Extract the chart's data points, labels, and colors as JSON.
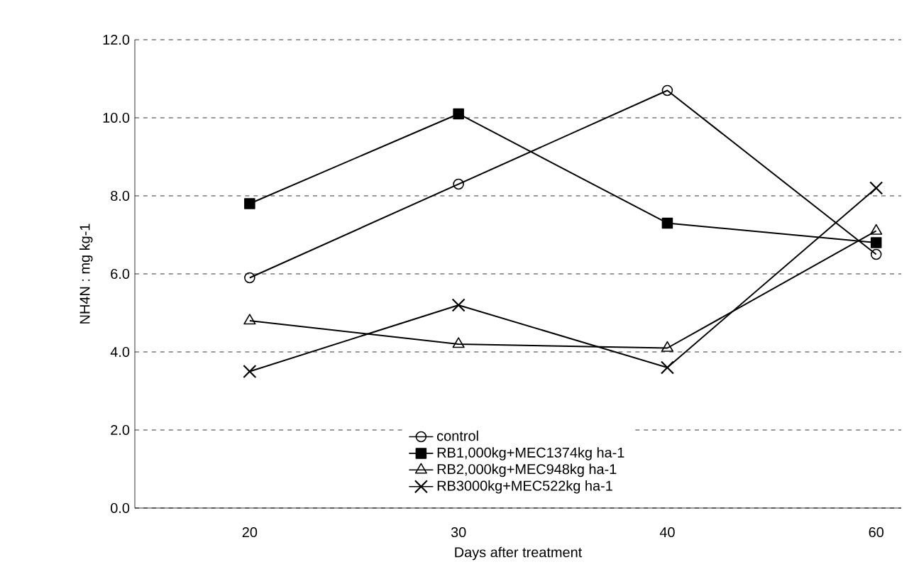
{
  "chart_data": {
    "type": "line",
    "xlabel": "Days after treatment",
    "ylabel": "NH4N : mg kg-1",
    "categories": [
      "20",
      "30",
      "40",
      "60"
    ],
    "ylim": [
      0,
      12
    ],
    "yticks": [
      {
        "value": 0,
        "label": "0.0"
      },
      {
        "value": 2,
        "label": "2.0"
      },
      {
        "value": 4,
        "label": "4.0"
      },
      {
        "value": 6,
        "label": "6.0"
      },
      {
        "value": 8,
        "label": "8.0"
      },
      {
        "value": 10,
        "label": "10.0"
      },
      {
        "value": 12,
        "label": "12.0"
      }
    ],
    "grid": "y",
    "legend": "bottom",
    "line_style": "solid",
    "series": [
      {
        "name": "control",
        "color": "#000000",
        "marker": "circle",
        "values": [
          5.9,
          8.3,
          10.7,
          6.5
        ]
      },
      {
        "name": "RB1,000kg+MEC1374kg ha-1",
        "color": "#000000",
        "marker": "square",
        "values": [
          7.8,
          10.1,
          7.3,
          6.8
        ]
      },
      {
        "name": "RB2,000kg+MEC948kg ha-1",
        "color": "#000000",
        "marker": "triangle",
        "values": [
          4.8,
          4.2,
          4.1,
          7.1
        ]
      },
      {
        "name": "RB3000kg+MEC522kg ha-1",
        "color": "#000000",
        "marker": "cross",
        "values": [
          3.5,
          5.2,
          3.6,
          8.2
        ]
      }
    ]
  }
}
